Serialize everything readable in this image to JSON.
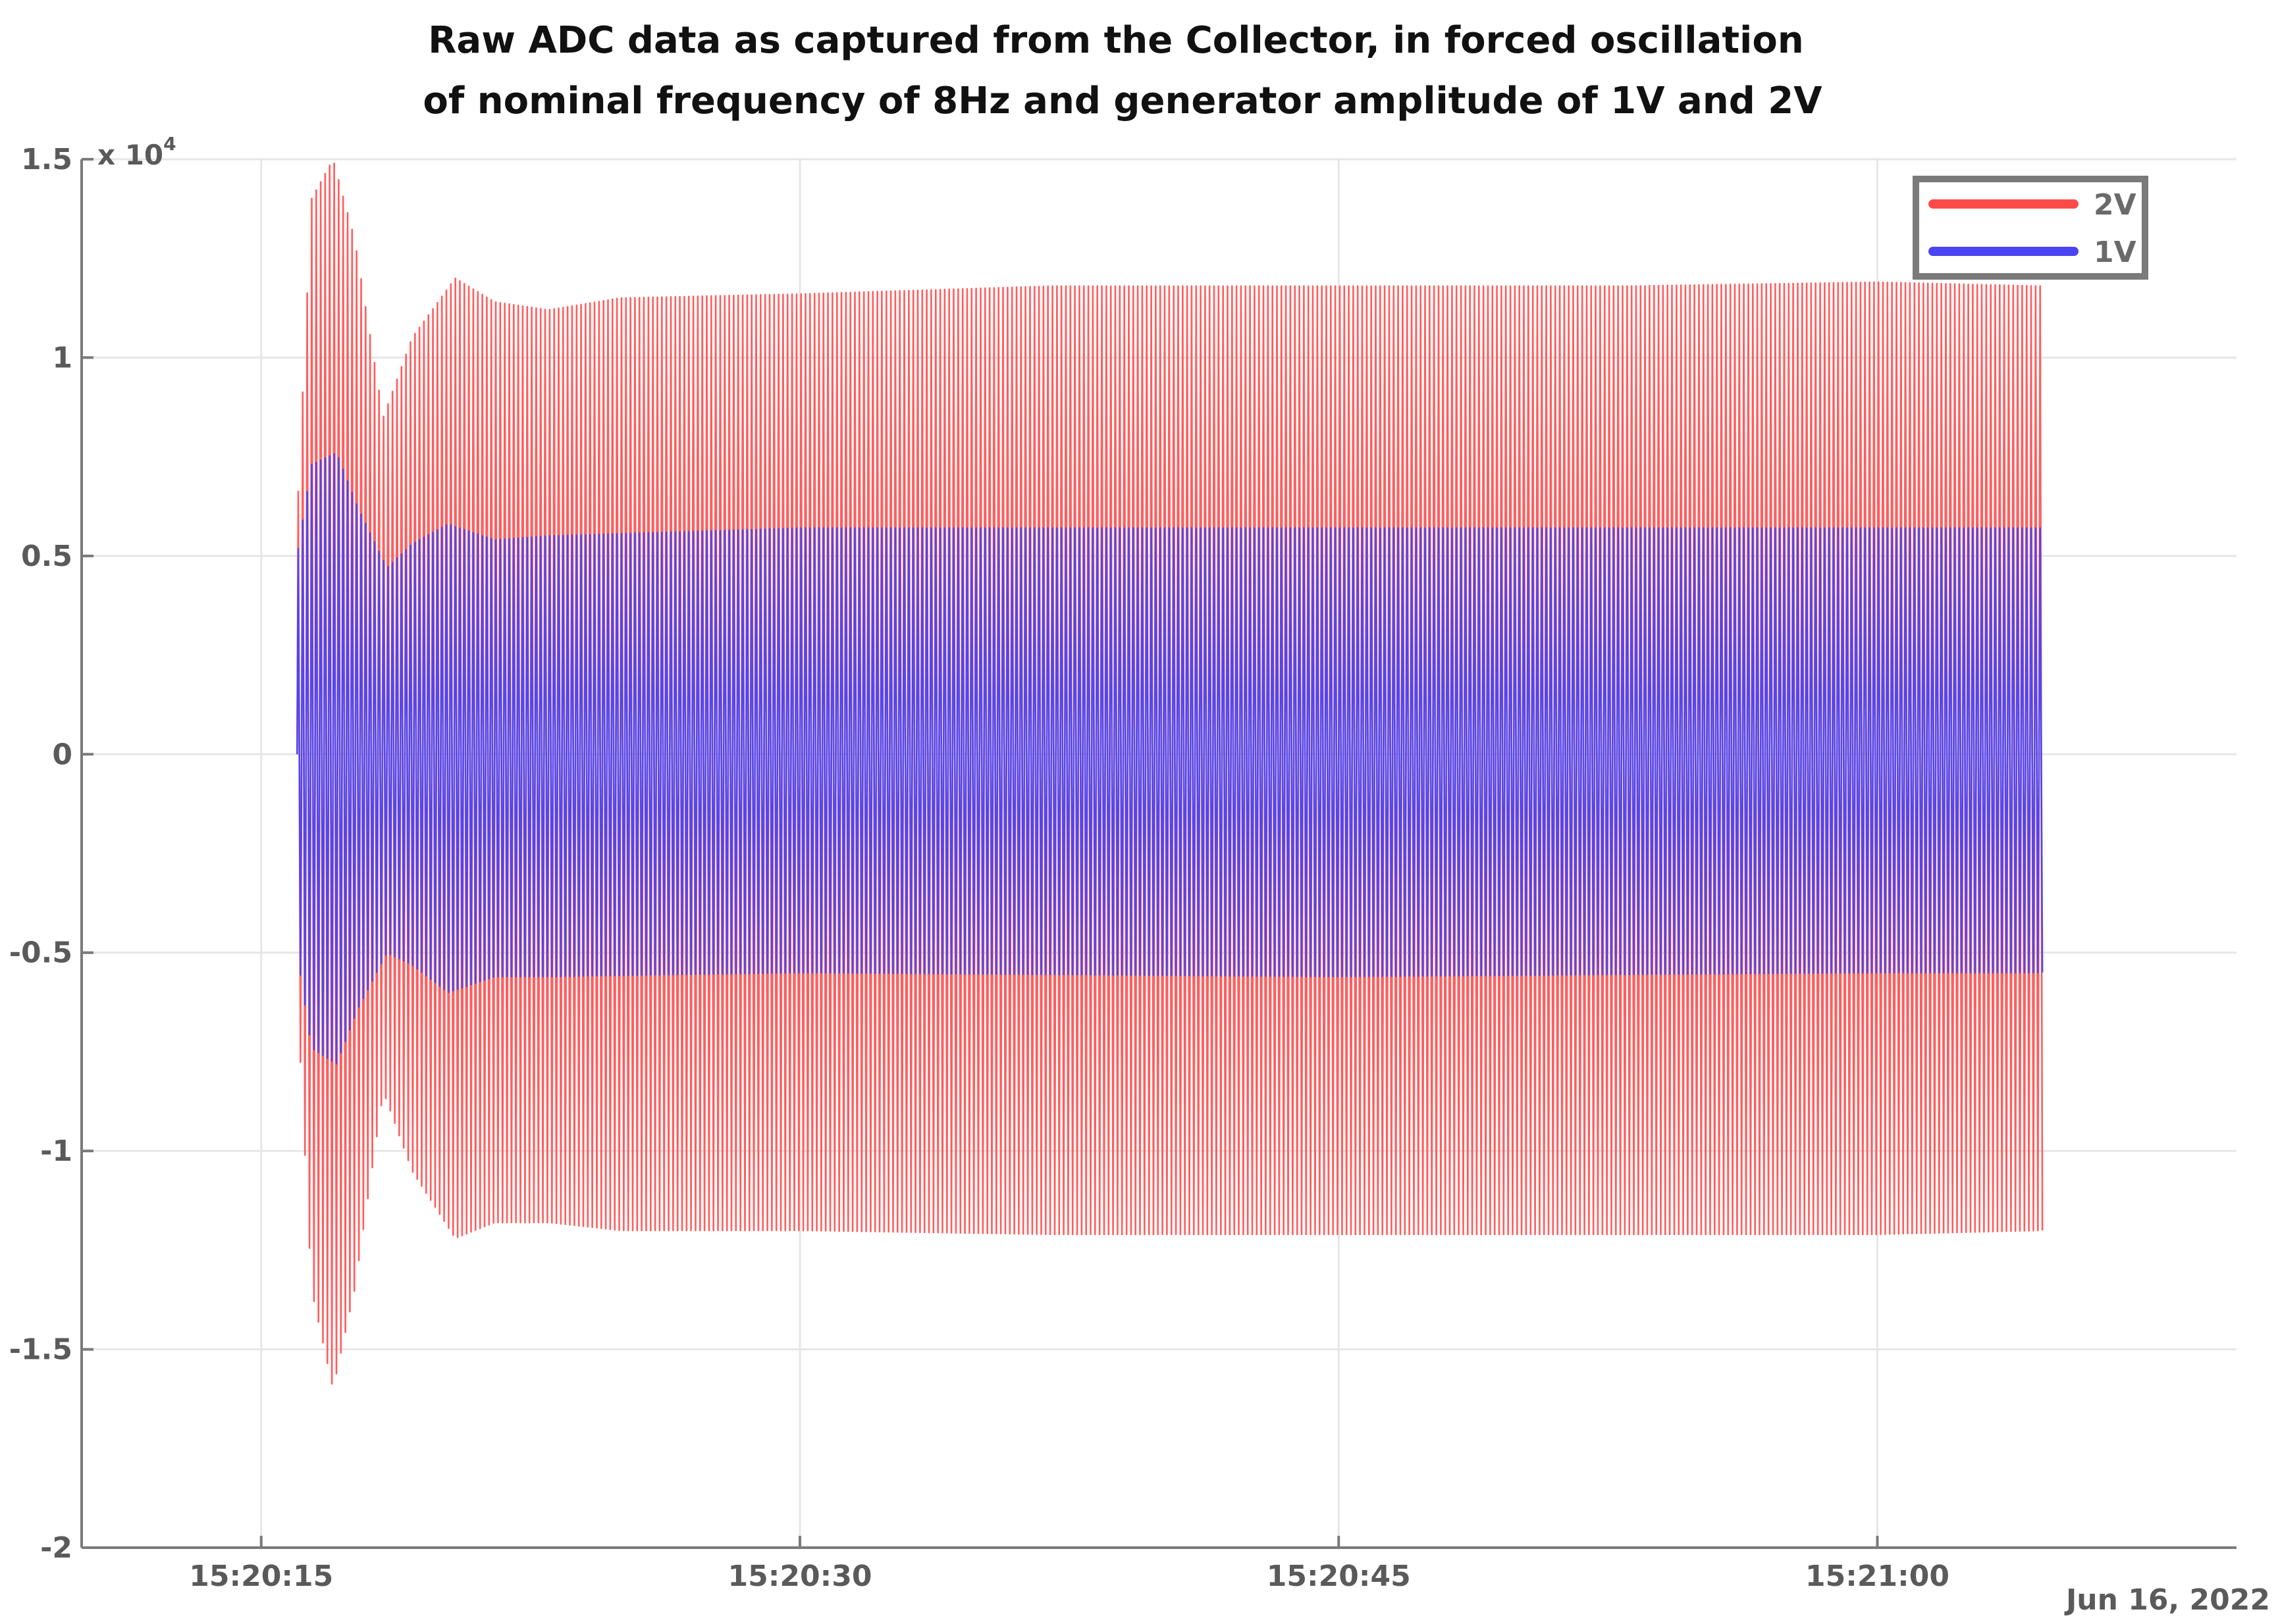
{
  "chart_data": {
    "type": "line",
    "title_lines": [
      "Raw ADC data as captured from the Collector, in forced oscillation",
      "of nominal frequency of 8Hz and generator amplitude of 1V and 2V"
    ],
    "xlabel": "",
    "ylabel": "",
    "y_exponent_label": "x 10",
    "y_exponent_power": "4",
    "date_label": "Jun 16, 2022",
    "ylim": [
      -2,
      1.5
    ],
    "xlim": [
      "15:20:10",
      "15:21:10"
    ],
    "x_ticks": [
      "15:20:15",
      "15:20:30",
      "15:20:45",
      "15:21:00"
    ],
    "y_ticks": [
      {
        "value": 1.5,
        "label": "1.5"
      },
      {
        "value": 1,
        "label": "1"
      },
      {
        "value": 0.5,
        "label": "0.5"
      },
      {
        "value": 0,
        "label": "0"
      },
      {
        "value": -0.5,
        "label": "-0.5"
      },
      {
        "value": -1,
        "label": "-1"
      },
      {
        "value": -1.5,
        "label": "-1.5"
      },
      {
        "value": -2,
        "label": "-2"
      }
    ],
    "grid": true,
    "legend_position": "top-right",
    "series": [
      {
        "name": "2V",
        "color": "#ff4d4d",
        "legend_color": "#ff4a4a",
        "oscillation_hz": 8,
        "envelope_time": [
          "15:20:16",
          "15:20:16.4",
          "15:20:17",
          "15:20:17.6",
          "15:20:18.4",
          "15:20:19.2",
          "15:20:20.4",
          "15:20:21.5",
          "15:20:23",
          "15:20:25",
          "15:20:30",
          "15:20:37",
          "15:20:45",
          "15:20:53",
          "15:21:00",
          "15:21:04.6"
        ],
        "envelope_upper": [
          0.6,
          1.4,
          1.5,
          1.3,
          0.85,
          1.05,
          1.2,
          1.14,
          1.12,
          1.15,
          1.16,
          1.18,
          1.18,
          1.18,
          1.19,
          1.18
        ],
        "envelope_lower": [
          -0.6,
          -1.35,
          -1.6,
          -1.35,
          -0.85,
          -1.05,
          -1.22,
          -1.18,
          -1.18,
          -1.2,
          -1.2,
          -1.21,
          -1.21,
          -1.21,
          -1.21,
          -1.2
        ]
      },
      {
        "name": "1V",
        "color": "#4b44f2",
        "legend_color": "#4b44f2",
        "oscillation_hz": 8,
        "envelope_time": [
          "15:20:16",
          "15:20:16.4",
          "15:20:17.1",
          "15:20:17.7",
          "15:20:18.5",
          "15:20:19.2",
          "15:20:20.2",
          "15:20:21.5",
          "15:20:23",
          "15:20:30",
          "15:20:45",
          "15:21:00",
          "15:21:04.6"
        ],
        "envelope_upper": [
          0.5,
          0.73,
          0.76,
          0.62,
          0.47,
          0.53,
          0.58,
          0.54,
          0.55,
          0.57,
          0.57,
          0.57,
          0.57
        ],
        "envelope_lower": [
          -0.5,
          -0.74,
          -0.78,
          -0.64,
          -0.5,
          -0.53,
          -0.6,
          -0.56,
          -0.56,
          -0.55,
          -0.56,
          -0.55,
          -0.55
        ]
      }
    ]
  }
}
